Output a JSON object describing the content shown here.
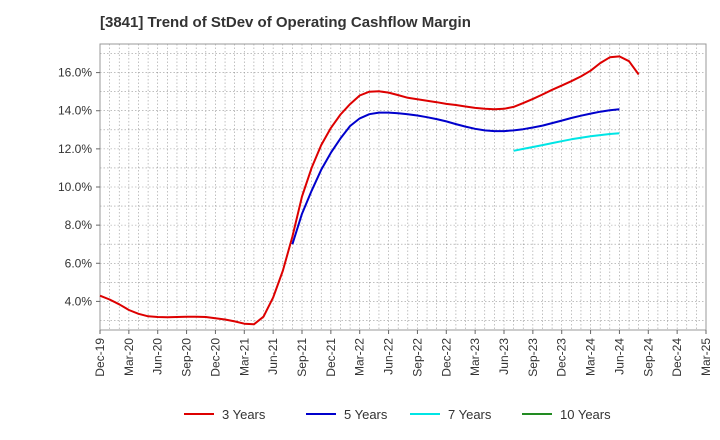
{
  "chart_data": {
    "type": "line",
    "title": "[3841]  Trend of StDev of Operating Cashflow Margin",
    "xlabel": "",
    "ylabel": "",
    "x_ticks": [
      "Dec-19",
      "Mar-20",
      "Jun-20",
      "Sep-20",
      "Dec-20",
      "Mar-21",
      "Jun-21",
      "Sep-21",
      "Dec-21",
      "Mar-22",
      "Jun-22",
      "Sep-22",
      "Dec-22",
      "Mar-23",
      "Jun-23",
      "Sep-23",
      "Dec-23",
      "Mar-24",
      "Jun-24",
      "Sep-24",
      "Dec-24",
      "Mar-25"
    ],
    "y_ticks": [
      "4.0%",
      "6.0%",
      "8.0%",
      "10.0%",
      "12.0%",
      "14.0%",
      "16.0%"
    ],
    "ylim": [
      2.5,
      17.5
    ],
    "grid": true,
    "legend_position": "bottom",
    "series": [
      {
        "name": "3 Years",
        "color": "#dd0000",
        "points": [
          [
            "Dec-19",
            4.3
          ],
          [
            "Jan-20",
            4.1
          ],
          [
            "Feb-20",
            3.85
          ],
          [
            "Mar-20",
            3.55
          ],
          [
            "Apr-20",
            3.35
          ],
          [
            "May-20",
            3.22
          ],
          [
            "Jun-20",
            3.18
          ],
          [
            "Jul-20",
            3.17
          ],
          [
            "Aug-20",
            3.18
          ],
          [
            "Sep-20",
            3.2
          ],
          [
            "Oct-20",
            3.2
          ],
          [
            "Nov-20",
            3.18
          ],
          [
            "Dec-20",
            3.12
          ],
          [
            "Jan-21",
            3.05
          ],
          [
            "Feb-21",
            2.95
          ],
          [
            "Mar-21",
            2.83
          ],
          [
            "Apr-21",
            2.8
          ],
          [
            "May-21",
            3.2
          ],
          [
            "Jun-21",
            4.2
          ],
          [
            "Jul-21",
            5.6
          ],
          [
            "Aug-21",
            7.4
          ],
          [
            "Sep-21",
            9.5
          ],
          [
            "Oct-21",
            11.0
          ],
          [
            "Nov-21",
            12.2
          ],
          [
            "Dec-21",
            13.1
          ],
          [
            "Jan-22",
            13.8
          ],
          [
            "Feb-22",
            14.35
          ],
          [
            "Mar-22",
            14.8
          ],
          [
            "Apr-22",
            15.0
          ],
          [
            "May-22",
            15.02
          ],
          [
            "Jun-22",
            14.95
          ],
          [
            "Jul-22",
            14.82
          ],
          [
            "Aug-22",
            14.68
          ],
          [
            "Sep-22",
            14.6
          ],
          [
            "Oct-22",
            14.52
          ],
          [
            "Nov-22",
            14.45
          ],
          [
            "Dec-22",
            14.36
          ],
          [
            "Jan-23",
            14.3
          ],
          [
            "Feb-23",
            14.22
          ],
          [
            "Mar-23",
            14.15
          ],
          [
            "Apr-23",
            14.1
          ],
          [
            "May-23",
            14.08
          ],
          [
            "Jun-23",
            14.1
          ],
          [
            "Jul-23",
            14.2
          ],
          [
            "Aug-23",
            14.4
          ],
          [
            "Sep-23",
            14.62
          ],
          [
            "Oct-23",
            14.85
          ],
          [
            "Nov-23",
            15.1
          ],
          [
            "Dec-23",
            15.32
          ],
          [
            "Jan-24",
            15.55
          ],
          [
            "Feb-24",
            15.8
          ],
          [
            "Mar-24",
            16.1
          ],
          [
            "Apr-24",
            16.5
          ],
          [
            "May-24",
            16.8
          ],
          [
            "Jun-24",
            16.85
          ],
          [
            "Jul-24",
            16.6
          ],
          [
            "Aug-24",
            15.9
          ]
        ]
      },
      {
        "name": "5 Years",
        "color": "#0000cc",
        "points": [
          [
            "Aug-21",
            7.0
          ],
          [
            "Sep-21",
            8.6
          ],
          [
            "Oct-21",
            9.8
          ],
          [
            "Nov-21",
            10.9
          ],
          [
            "Dec-21",
            11.8
          ],
          [
            "Jan-22",
            12.55
          ],
          [
            "Feb-22",
            13.2
          ],
          [
            "Mar-22",
            13.6
          ],
          [
            "Apr-22",
            13.82
          ],
          [
            "May-22",
            13.9
          ],
          [
            "Jun-22",
            13.9
          ],
          [
            "Jul-22",
            13.87
          ],
          [
            "Aug-22",
            13.82
          ],
          [
            "Sep-22",
            13.75
          ],
          [
            "Oct-22",
            13.66
          ],
          [
            "Nov-22",
            13.56
          ],
          [
            "Dec-22",
            13.44
          ],
          [
            "Jan-23",
            13.3
          ],
          [
            "Feb-23",
            13.17
          ],
          [
            "Mar-23",
            13.05
          ],
          [
            "Apr-23",
            12.97
          ],
          [
            "May-23",
            12.93
          ],
          [
            "Jun-23",
            12.93
          ],
          [
            "Jul-23",
            12.97
          ],
          [
            "Aug-23",
            13.03
          ],
          [
            "Sep-23",
            13.12
          ],
          [
            "Oct-23",
            13.22
          ],
          [
            "Nov-23",
            13.35
          ],
          [
            "Dec-23",
            13.48
          ],
          [
            "Jan-24",
            13.62
          ],
          [
            "Feb-24",
            13.74
          ],
          [
            "Mar-24",
            13.85
          ],
          [
            "Apr-24",
            13.95
          ],
          [
            "May-24",
            14.03
          ],
          [
            "Jun-24",
            14.08
          ]
        ]
      },
      {
        "name": "7 Years",
        "color": "#00e5e5",
        "points": [
          [
            "Jul-23",
            11.9
          ],
          [
            "Aug-23",
            12.0
          ],
          [
            "Sep-23",
            12.1
          ],
          [
            "Oct-23",
            12.2
          ],
          [
            "Nov-23",
            12.3
          ],
          [
            "Dec-23",
            12.4
          ],
          [
            "Jan-24",
            12.5
          ],
          [
            "Feb-24",
            12.58
          ],
          [
            "Mar-24",
            12.66
          ],
          [
            "Apr-24",
            12.72
          ],
          [
            "May-24",
            12.78
          ],
          [
            "Jun-24",
            12.82
          ]
        ]
      },
      {
        "name": "10 Years",
        "color": "#228b22",
        "points": []
      }
    ]
  }
}
